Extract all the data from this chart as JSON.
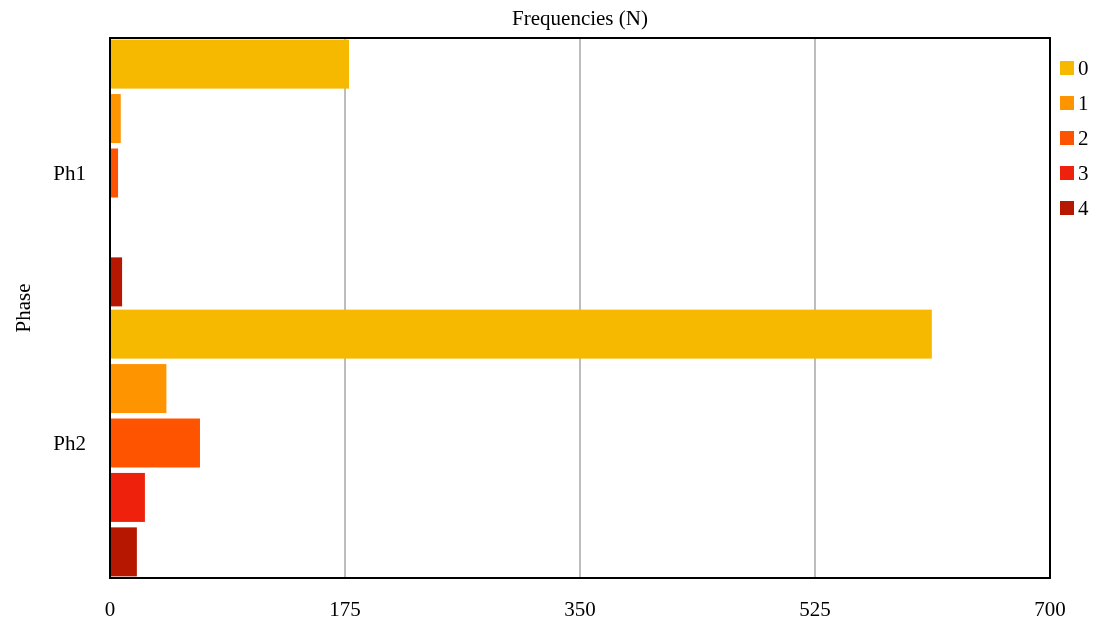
{
  "chart_data": {
    "type": "bar",
    "orientation": "horizontal",
    "title": "Frequencies (N)",
    "ylabel": "Phase",
    "categories": [
      "Ph1",
      "Ph2"
    ],
    "series": [
      {
        "name": "0",
        "color": "#f6b900",
        "values": [
          178,
          612
        ]
      },
      {
        "name": "1",
        "color": "#fe9400",
        "values": [
          8,
          42
        ]
      },
      {
        "name": "2",
        "color": "#fe5400",
        "values": [
          6,
          67
        ]
      },
      {
        "name": "3",
        "color": "#ee220c",
        "values": [
          0,
          26
        ]
      },
      {
        "name": "4",
        "color": "#b51700",
        "values": [
          9,
          20
        ]
      }
    ],
    "xlim": [
      0,
      700
    ],
    "xticks": [
      0,
      175,
      350,
      525,
      700
    ],
    "grid": "x",
    "legend": "right"
  }
}
